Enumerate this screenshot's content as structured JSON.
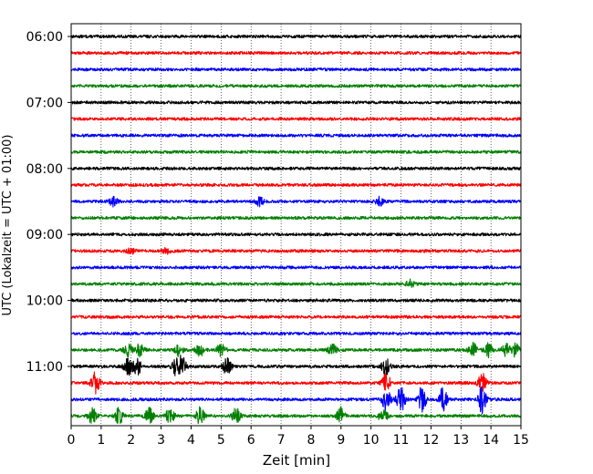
{
  "chart_data": {
    "type": "line",
    "title": "",
    "xlabel": "Zeit  [min]",
    "ylabel": "UTC (Lokalzeit = UTC + 01:00)",
    "xlim": [
      0,
      15
    ],
    "x_ticks": [
      "0",
      "1",
      "2",
      "3",
      "4",
      "5",
      "6",
      "7",
      "8",
      "9",
      "10",
      "11",
      "12",
      "13",
      "14",
      "15"
    ],
    "y_tick_labels": [
      "06:00",
      "07:00",
      "08:00",
      "09:00",
      "10:00",
      "11:00"
    ],
    "trace_start_times": [
      "06:00",
      "06:15",
      "06:30",
      "06:45",
      "07:00",
      "07:15",
      "07:30",
      "07:45",
      "08:00",
      "08:15",
      "08:30",
      "08:45",
      "09:00",
      "09:15",
      "09:30",
      "09:45",
      "10:00",
      "10:15",
      "10:30",
      "10:45",
      "11:00",
      "11:15",
      "11:30",
      "11:45"
    ],
    "trace_colors": [
      "#000000",
      "#ff0000",
      "#0000ff",
      "#008000"
    ],
    "vertical_gridlines": "dotted, every minute",
    "events": [
      {
        "trace": "10:45",
        "times_min": [
          1.9,
          2.3,
          3.6,
          4.3,
          5.0,
          8.7,
          13.4,
          13.9,
          14.5,
          14.8
        ],
        "amplitude": 0.9
      },
      {
        "trace": "11:00",
        "times_min": [
          1.9,
          2.2,
          3.5,
          3.7,
          5.2,
          10.5
        ],
        "amplitude": 1.2
      },
      {
        "trace": "11:15",
        "times_min": [
          0.8,
          10.5,
          13.7
        ],
        "amplitude": 1.5
      },
      {
        "trace": "11:30",
        "times_min": [
          10.5,
          11.0,
          11.7,
          12.4,
          13.7
        ],
        "amplitude": 1.8
      },
      {
        "trace": "11:45",
        "times_min": [
          0.7,
          1.6,
          2.6,
          3.3,
          4.3,
          5.5,
          9.0,
          10.4
        ],
        "amplitude": 1.1
      },
      {
        "trace": "08:30",
        "times_min": [
          1.4,
          6.3,
          10.3
        ],
        "amplitude": 0.6
      },
      {
        "trace": "09:15",
        "times_min": [
          2.0,
          3.2
        ],
        "amplitude": 0.4
      },
      {
        "trace": "09:45",
        "times_min": [
          11.3
        ],
        "amplitude": 0.5
      }
    ]
  }
}
